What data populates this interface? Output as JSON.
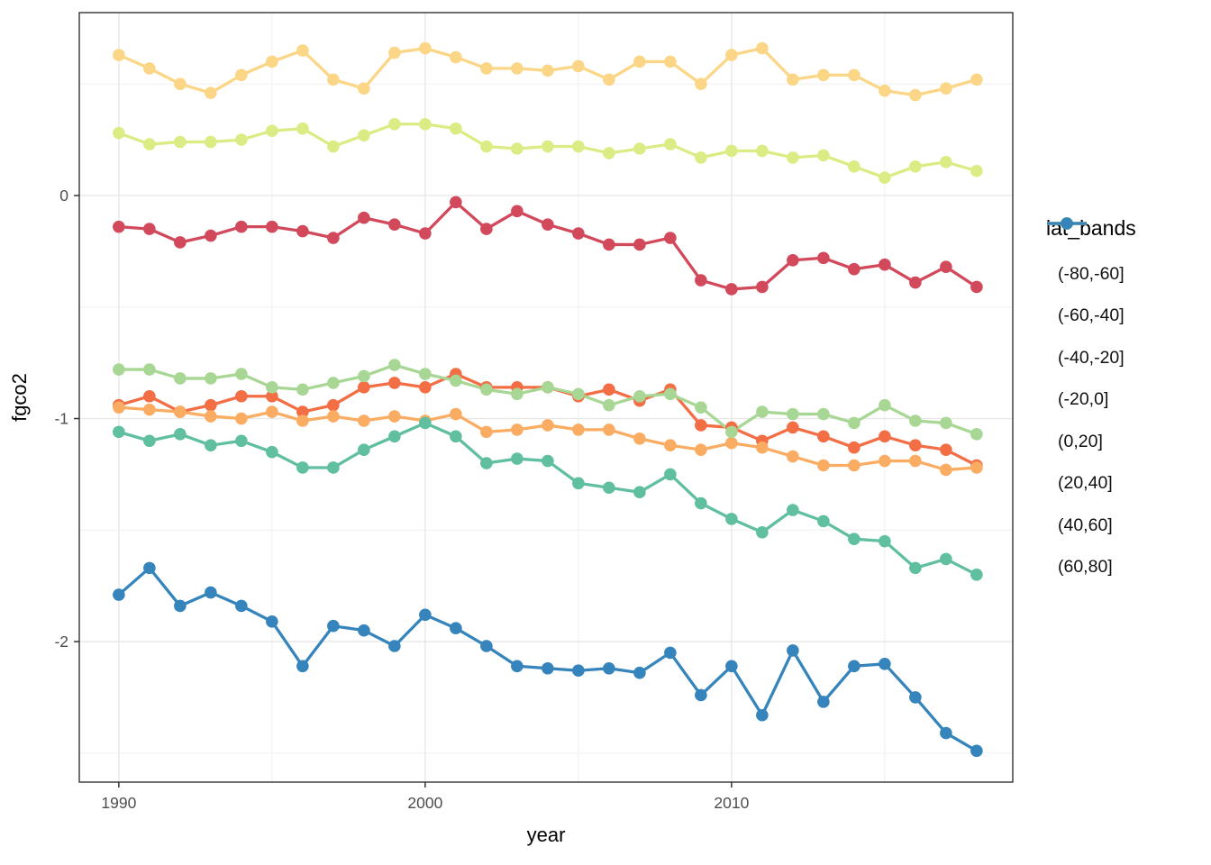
{
  "chart_data": {
    "type": "line",
    "title": "",
    "xlabel": "year",
    "ylabel": "fgco2",
    "legend_title": "lat_bands",
    "legend_position": "right",
    "grid": true,
    "x_ticks": [
      1990,
      2000,
      2010
    ],
    "x_minor_gridlines": [
      1995,
      2005,
      2015
    ],
    "y_ticks": [
      0,
      -1,
      -2
    ],
    "y_tick_labels": [
      "0",
      "-1",
      "-2"
    ],
    "y_minor_gridlines": [
      0.5,
      -0.5,
      -1.5,
      -2.5
    ],
    "xlim": [
      1988.71,
      2019.18
    ],
    "ylim": [
      -2.63,
      0.82
    ],
    "x": [
      1990,
      1991,
      1992,
      1993,
      1994,
      1995,
      1996,
      1997,
      1998,
      1999,
      2000,
      2001,
      2002,
      2003,
      2004,
      2005,
      2006,
      2007,
      2008,
      2009,
      2010,
      2011,
      2012,
      2013,
      2014,
      2015,
      2016,
      2017,
      2018
    ],
    "series": [
      {
        "name": "(-80,-60]",
        "color": "#D1495B",
        "values": [
          -0.14,
          -0.15,
          -0.21,
          -0.18,
          -0.14,
          -0.14,
          -0.16,
          -0.19,
          -0.1,
          -0.13,
          -0.17,
          -0.03,
          -0.15,
          -0.07,
          -0.13,
          -0.17,
          -0.22,
          -0.22,
          -0.19,
          -0.38,
          -0.42,
          -0.41,
          -0.29,
          -0.28,
          -0.33,
          -0.31,
          -0.39,
          -0.32,
          -0.41
        ]
      },
      {
        "name": "(-60,-40]",
        "color": "#F36D45",
        "values": [
          -0.94,
          -0.9,
          -0.97,
          -0.94,
          -0.9,
          -0.9,
          -0.97,
          -0.94,
          -0.86,
          -0.84,
          -0.86,
          -0.8,
          -0.86,
          -0.86,
          -0.86,
          -0.9,
          -0.87,
          -0.92,
          -0.87,
          -1.03,
          -1.04,
          -1.1,
          -1.04,
          -1.08,
          -1.13,
          -1.08,
          -1.12,
          -1.14,
          -1.21
        ]
      },
      {
        "name": "(-40,-20]",
        "color": "#FAAC62",
        "values": [
          -0.95,
          -0.96,
          -0.97,
          -0.99,
          -1.0,
          -0.97,
          -1.01,
          -0.99,
          -1.01,
          -0.99,
          -1.01,
          -0.98,
          -1.06,
          -1.05,
          -1.03,
          -1.05,
          -1.05,
          -1.09,
          -1.12,
          -1.14,
          -1.11,
          -1.13,
          -1.17,
          -1.21,
          -1.21,
          -1.19,
          -1.19,
          -1.23,
          -1.22
        ]
      },
      {
        "name": "(-20,0]",
        "color": "#FBD686",
        "values": [
          0.63,
          0.57,
          0.5,
          0.46,
          0.54,
          0.6,
          0.65,
          0.52,
          0.48,
          0.64,
          0.66,
          0.62,
          0.57,
          0.57,
          0.56,
          0.58,
          0.52,
          0.6,
          0.6,
          0.5,
          0.63,
          0.66,
          0.52,
          0.54,
          0.54,
          0.47,
          0.45,
          0.48,
          0.52
        ]
      },
      {
        "name": "(0,20]",
        "color": "#DCEC84",
        "values": [
          0.28,
          0.23,
          0.24,
          0.24,
          0.25,
          0.29,
          0.3,
          0.22,
          0.27,
          0.32,
          0.32,
          0.3,
          0.22,
          0.21,
          0.22,
          0.22,
          0.19,
          0.21,
          0.23,
          0.17,
          0.2,
          0.2,
          0.17,
          0.18,
          0.13,
          0.08,
          0.13,
          0.15,
          0.11
        ]
      },
      {
        "name": "(20,40]",
        "color": "#A8D795",
        "values": [
          -0.78,
          -0.78,
          -0.82,
          -0.82,
          -0.8,
          -0.86,
          -0.87,
          -0.84,
          -0.81,
          -0.76,
          -0.8,
          -0.83,
          -0.87,
          -0.89,
          -0.86,
          -0.89,
          -0.94,
          -0.9,
          -0.89,
          -0.95,
          -1.06,
          -0.97,
          -0.98,
          -0.98,
          -1.02,
          -0.94,
          -1.01,
          -1.02,
          -1.07
        ]
      },
      {
        "name": "(40,60]",
        "color": "#5FBF9E",
        "values": [
          -1.06,
          -1.1,
          -1.07,
          -1.12,
          -1.1,
          -1.15,
          -1.22,
          -1.22,
          -1.14,
          -1.08,
          -1.02,
          -1.08,
          -1.2,
          -1.18,
          -1.19,
          -1.29,
          -1.31,
          -1.33,
          -1.25,
          -1.38,
          -1.45,
          -1.51,
          -1.41,
          -1.46,
          -1.54,
          -1.55,
          -1.67,
          -1.63,
          -1.7
        ]
      },
      {
        "name": "(60,80]",
        "color": "#3585BC",
        "values": [
          -1.79,
          -1.67,
          -1.84,
          -1.78,
          -1.84,
          -1.91,
          -2.11,
          -1.93,
          -1.95,
          -2.02,
          -1.88,
          -1.94,
          -2.02,
          -2.11,
          -2.12,
          -2.13,
          -2.12,
          -2.14,
          -2.05,
          -2.24,
          -2.11,
          -2.33,
          -2.04,
          -2.27,
          -2.11,
          -2.1,
          -2.25,
          -2.41,
          -2.49
        ]
      }
    ],
    "style": {
      "panel_border_color": "#333333",
      "major_grid_color": "#E6E6E6",
      "minor_grid_color": "#F2F2F2",
      "tick_color": "#333333",
      "tick_label_color": "#4D4D4D"
    }
  }
}
